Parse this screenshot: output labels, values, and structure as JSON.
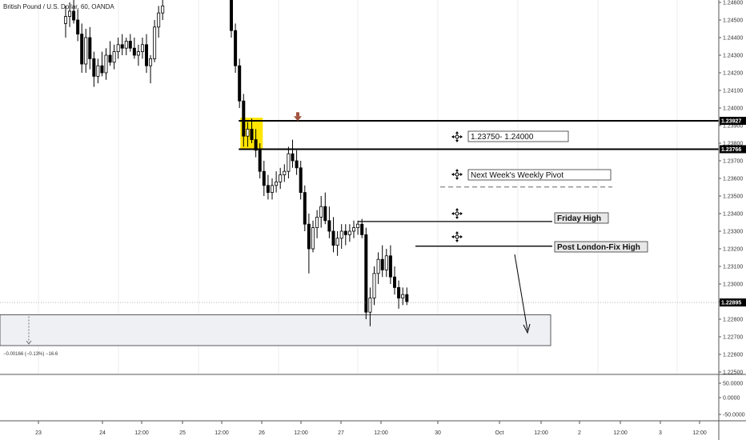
{
  "header": {
    "title": "British Pound / U.S. Dollar, 60, OANDA"
  },
  "colors": {
    "candle": "#000000",
    "highlight": "#ffe600",
    "arrow_down": "#a0523d",
    "range_fill": "#eef0f4",
    "price_tag_bg": "#000000"
  },
  "chart_data": {
    "type": "candlestick",
    "ylim": [
      1.225,
      1.246
    ],
    "y_ticks": [
      "1.24600",
      "1.24500",
      "1.24400",
      "1.24300",
      "1.24200",
      "1.24100",
      "1.24000",
      "1.23900",
      "1.23800",
      "1.23700",
      "1.23600",
      "1.23500",
      "1.23400",
      "1.23300",
      "1.23200",
      "1.23100",
      "1.23000",
      "1.22900",
      "1.22800",
      "1.22700",
      "1.22600",
      "1.22500"
    ],
    "x_labels": [
      "23",
      "24",
      "12:00",
      "25",
      "12:00",
      "26",
      "12:00",
      "27",
      "12:00",
      "30",
      "Oct",
      "12:00",
      "2",
      "12:00",
      "3",
      "12:00"
    ],
    "indicator_ticks": [
      "50.0000",
      "0.0000",
      "-50.0000"
    ],
    "price_tags": [
      {
        "label": "1.23927",
        "value": 1.23927
      },
      {
        "label": "1.23766",
        "value": 1.23766
      },
      {
        "label": "1.22895",
        "value": 1.22895
      }
    ],
    "levels": [
      {
        "name": "resistance-high",
        "value": 1.23927
      },
      {
        "name": "resistance-low",
        "value": 1.23766
      },
      {
        "name": "friday-high",
        "value": 1.23355
      },
      {
        "name": "post-london-fix-high",
        "value": 1.23215
      },
      {
        "name": "weekly-pivot",
        "value": 1.23551
      },
      {
        "name": "current-price",
        "value": 1.22895
      }
    ],
    "range_box": {
      "top": 1.22825,
      "bottom": 1.2265,
      "label": "−0.00166 (−0.13%) −16.6"
    },
    "annotations": [
      {
        "text": "1.23750- 1.24000",
        "bold": false
      },
      {
        "text": "Next Week's Weekly Pivot",
        "bold": false
      },
      {
        "text": "Friday High",
        "bold": true
      },
      {
        "text": "Post London-Fix High",
        "bold": true
      }
    ],
    "candles": [
      [
        1.2448,
        1.2458,
        1.244,
        1.2452
      ],
      [
        1.2452,
        1.246,
        1.2446,
        1.2455
      ],
      [
        1.2455,
        1.2462,
        1.2448,
        1.245
      ],
      [
        1.245,
        1.2456,
        1.2438,
        1.2442
      ],
      [
        1.2442,
        1.2448,
        1.242,
        1.2425
      ],
      [
        1.2425,
        1.2445,
        1.242,
        1.244
      ],
      [
        1.244,
        1.2446,
        1.2422,
        1.2428
      ],
      [
        1.2428,
        1.2432,
        1.2412,
        1.2418
      ],
      [
        1.2418,
        1.2428,
        1.2414,
        1.2424
      ],
      [
        1.2424,
        1.2432,
        1.2418,
        1.242
      ],
      [
        1.242,
        1.2434,
        1.2416,
        1.243
      ],
      [
        1.243,
        1.2438,
        1.2424,
        1.2426
      ],
      [
        1.2426,
        1.2436,
        1.2422,
        1.2432
      ],
      [
        1.2432,
        1.244,
        1.2428,
        1.2436
      ],
      [
        1.2436,
        1.2442,
        1.243,
        1.2434
      ],
      [
        1.2434,
        1.244,
        1.243,
        1.2438
      ],
      [
        1.2438,
        1.2442,
        1.2432,
        1.2434
      ],
      [
        1.2434,
        1.244,
        1.2428,
        1.243
      ],
      [
        1.243,
        1.2436,
        1.2424,
        1.2432
      ],
      [
        1.2432,
        1.244,
        1.2428,
        1.2436
      ],
      [
        1.2436,
        1.2442,
        1.242,
        1.2424
      ],
      [
        1.2424,
        1.243,
        1.2414,
        1.2428
      ],
      [
        1.2428,
        1.245,
        1.2426,
        1.2446
      ],
      [
        1.2446,
        1.2458,
        1.244,
        1.2454
      ],
      [
        1.2454,
        1.2462,
        1.245,
        1.2458
      ],
      [
        1.2462,
        1.2464,
        1.244,
        1.2444
      ],
      [
        1.2444,
        1.2448,
        1.242,
        1.2424
      ],
      [
        1.2424,
        1.2428,
        1.24,
        1.2404
      ],
      [
        1.2404,
        1.2408,
        1.2378,
        1.2384
      ],
      [
        1.2384,
        1.2392,
        1.2378,
        1.2388
      ],
      [
        1.2388,
        1.2394,
        1.238,
        1.2382
      ],
      [
        1.2382,
        1.2388,
        1.2372,
        1.2376
      ],
      [
        1.2376,
        1.238,
        1.236,
        1.2364
      ],
      [
        1.2364,
        1.237,
        1.235,
        1.2356
      ],
      [
        1.2356,
        1.2362,
        1.2348,
        1.2352
      ],
      [
        1.2352,
        1.236,
        1.2348,
        1.2356
      ],
      [
        1.2356,
        1.2364,
        1.2352,
        1.2358
      ],
      [
        1.2358,
        1.2366,
        1.2354,
        1.2362
      ],
      [
        1.2362,
        1.2368,
        1.2358,
        1.2364
      ],
      [
        1.2364,
        1.2378,
        1.236,
        1.2374
      ],
      [
        1.2374,
        1.2382,
        1.2366,
        1.237
      ],
      [
        1.237,
        1.2376,
        1.2362,
        1.2366
      ],
      [
        1.2366,
        1.237,
        1.2348,
        1.2352
      ],
      [
        1.2352,
        1.2356,
        1.233,
        1.2334
      ],
      [
        1.2334,
        1.234,
        1.2306,
        1.232
      ],
      [
        1.232,
        1.2336,
        1.2318,
        1.2332
      ],
      [
        1.2332,
        1.2342,
        1.2326,
        1.2338
      ],
      [
        1.2338,
        1.235,
        1.2332,
        1.2344
      ],
      [
        1.2344,
        1.2352,
        1.2334,
        1.2336
      ],
      [
        1.2336,
        1.2344,
        1.2326,
        1.233
      ],
      [
        1.233,
        1.2338,
        1.2318,
        1.2322
      ],
      [
        1.2322,
        1.233,
        1.2316,
        1.2326
      ],
      [
        1.2326,
        1.2334,
        1.232,
        1.233
      ],
      [
        1.233,
        1.2334,
        1.2322,
        1.2328
      ],
      [
        1.2328,
        1.2334,
        1.2324,
        1.233
      ],
      [
        1.233,
        1.2336,
        1.2326,
        1.2332
      ],
      [
        1.2332,
        1.2336,
        1.2328,
        1.2334
      ],
      [
        1.2334,
        1.2337,
        1.2326,
        1.2328
      ],
      [
        1.2328,
        1.2332,
        1.228,
        1.2284
      ],
      [
        1.2284,
        1.2298,
        1.2276,
        1.2292
      ],
      [
        1.2292,
        1.231,
        1.2288,
        1.2306
      ],
      [
        1.2306,
        1.2318,
        1.23,
        1.2314
      ],
      [
        1.2314,
        1.2322,
        1.2304,
        1.2308
      ],
      [
        1.2308,
        1.232,
        1.2304,
        1.2316
      ],
      [
        1.2316,
        1.2322,
        1.23,
        1.2304
      ],
      [
        1.2304,
        1.231,
        1.2294,
        1.2298
      ],
      [
        1.2298,
        1.2302,
        1.2286,
        1.2292
      ],
      [
        1.2292,
        1.2298,
        1.2288,
        1.2294
      ],
      [
        1.2294,
        1.2298,
        1.2288,
        1.229
      ]
    ]
  }
}
